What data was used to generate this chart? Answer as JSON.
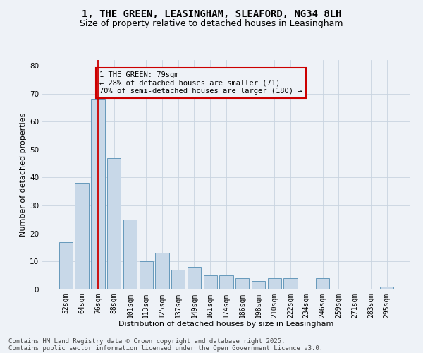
{
  "title_line1": "1, THE GREEN, LEASINGHAM, SLEAFORD, NG34 8LH",
  "title_line2": "Size of property relative to detached houses in Leasingham",
  "xlabel": "Distribution of detached houses by size in Leasingham",
  "ylabel": "Number of detached properties",
  "categories": [
    "52sqm",
    "64sqm",
    "76sqm",
    "88sqm",
    "101sqm",
    "113sqm",
    "125sqm",
    "137sqm",
    "149sqm",
    "161sqm",
    "174sqm",
    "186sqm",
    "198sqm",
    "210sqm",
    "222sqm",
    "234sqm",
    "246sqm",
    "259sqm",
    "271sqm",
    "283sqm",
    "295sqm"
  ],
  "values": [
    17,
    38,
    68,
    47,
    25,
    10,
    13,
    7,
    8,
    5,
    5,
    4,
    3,
    4,
    4,
    0,
    4,
    0,
    0,
    0,
    1
  ],
  "bar_color": "#c8d8e8",
  "bar_edge_color": "#6699bb",
  "highlight_bar_index": 2,
  "highlight_line_color": "#cc0000",
  "ylim": [
    0,
    82
  ],
  "yticks": [
    0,
    10,
    20,
    30,
    40,
    50,
    60,
    70,
    80
  ],
  "annotation_text": "1 THE GREEN: 79sqm\n← 28% of detached houses are smaller (71)\n70% of semi-detached houses are larger (180) →",
  "annotation_box_color": "#cc0000",
  "footer_line1": "Contains HM Land Registry data © Crown copyright and database right 2025.",
  "footer_line2": "Contains public sector information licensed under the Open Government Licence v3.0.",
  "bg_color": "#eef2f7",
  "grid_color": "#c8d4e0",
  "title_fontsize": 10,
  "subtitle_fontsize": 9,
  "axis_fontsize": 8,
  "tick_fontsize": 7,
  "footer_fontsize": 6.5,
  "annotation_fontsize": 7.5
}
